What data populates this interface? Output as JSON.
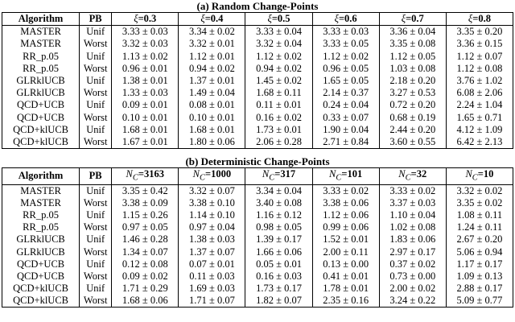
{
  "tables": [
    {
      "caption": "(a) Random Change-Points",
      "header": {
        "algorithm": "Algorithm",
        "pb": "PB",
        "columns": [
          {
            "symbol": "ξ",
            "value": "=0.3"
          },
          {
            "symbol": "ξ",
            "value": "=0.4"
          },
          {
            "symbol": "ξ",
            "value": "=0.5"
          },
          {
            "symbol": "ξ",
            "value": "=0.6"
          },
          {
            "symbol": "ξ",
            "value": "=0.7"
          },
          {
            "symbol": "ξ",
            "value": "=0.8"
          }
        ]
      },
      "rows": [
        [
          "MASTER",
          "Unif",
          "3.33 ± 0.03",
          "3.34 ± 0.02",
          "3.33 ± 0.04",
          "3.33 ± 0.03",
          "3.36 ± 0.04",
          "3.35 ± 0.20"
        ],
        [
          "MASTER",
          "Worst",
          "3.32 ± 0.03",
          "3.32 ± 0.01",
          "3.32 ± 0.04",
          "3.33 ± 0.05",
          "3.35 ± 0.08",
          "3.36 ± 0.15"
        ],
        [
          "RR_p.05",
          "Unif",
          "1.13 ± 0.02",
          "1.12 ± 0.01",
          "1.12 ± 0.02",
          "1.12 ± 0.02",
          "1.12 ± 0.05",
          "1.12 ± 0.07"
        ],
        [
          "RR_p.05",
          "Worst",
          "0.96 ± 0.01",
          "0.94 ± 0.02",
          "0.94 ± 0.02",
          "0.96 ± 0.05",
          "1.03 ± 0.08",
          "1.12 ± 0.08"
        ],
        [
          "GLRklUCB",
          "Unif",
          "1.38 ± 0.01",
          "1.37 ± 0.01",
          "1.45 ± 0.02",
          "1.65 ± 0.05",
          "2.18 ± 0.20",
          "3.76 ± 1.02"
        ],
        [
          "GLRklUCB",
          "Worst",
          "1.33 ± 0.03",
          "1.49 ± 0.04",
          "1.68 ± 0.11",
          "2.14 ± 0.37",
          "3.27 ± 0.53",
          "6.08 ± 2.06"
        ],
        [
          "QCD+UCB",
          "Unif",
          "0.09 ± 0.01",
          "0.08 ± 0.01",
          "0.11 ± 0.01",
          "0.24 ± 0.04",
          "0.72 ± 0.20",
          "2.24 ± 1.04"
        ],
        [
          "QCD+UCB",
          "Worst",
          "0.10 ± 0.01",
          "0.10 ± 0.01",
          "0.16 ± 0.02",
          "0.33 ± 0.07",
          "0.68 ± 0.19",
          "1.65 ± 0.71"
        ],
        [
          "QCD+klUCB",
          "Unif",
          "1.68 ± 0.01",
          "1.68 ± 0.01",
          "1.73 ± 0.01",
          "1.90 ± 0.04",
          "2.44 ± 0.20",
          "4.12 ± 1.09"
        ],
        [
          "QCD+klUCB",
          "Worst",
          "1.67 ± 0.01",
          "1.80 ± 0.06",
          "2.06 ± 0.28",
          "2.71 ± 0.84",
          "3.60 ± 0.55",
          "6.42 ± 2.13"
        ]
      ]
    },
    {
      "caption": "(b) Deterministic Change-Points",
      "header": {
        "algorithm": "Algorithm",
        "pb": "PB",
        "columns": [
          {
            "symbol": "N",
            "sub": "C",
            "value": "=3163"
          },
          {
            "symbol": "N",
            "sub": "C",
            "value": "=1000"
          },
          {
            "symbol": "N",
            "sub": "C",
            "value": "=317"
          },
          {
            "symbol": "N",
            "sub": "C",
            "value": "=101"
          },
          {
            "symbol": "N",
            "sub": "C",
            "value": "=32"
          },
          {
            "symbol": "N",
            "sub": "C",
            "value": "=10"
          }
        ]
      },
      "rows": [
        [
          "MASTER",
          "Unif",
          "3.35 ± 0.42",
          "3.32 ± 0.07",
          "3.34 ± 0.04",
          "3.33 ± 0.02",
          "3.33 ± 0.02",
          "3.32 ± 0.02"
        ],
        [
          "MASTER",
          "Worst",
          "3.38 ± 0.09",
          "3.38 ± 0.10",
          "3.40 ± 0.08",
          "3.38 ± 0.06",
          "3.37 ± 0.03",
          "3.35 ± 0.02"
        ],
        [
          "RR_p.05",
          "Unif",
          "1.15 ± 0.26",
          "1.14 ± 0.10",
          "1.16 ± 0.12",
          "1.12 ± 0.06",
          "1.10 ± 0.04",
          "1.08 ± 0.11"
        ],
        [
          "RR_p.05",
          "Worst",
          "0.97 ± 0.05",
          "0.97 ± 0.04",
          "0.98 ± 0.05",
          "0.99 ± 0.06",
          "1.02 ± 0.08",
          "1.24 ± 0.11"
        ],
        [
          "GLRklUCB",
          "Unif",
          "1.46 ± 0.28",
          "1.38 ± 0.03",
          "1.39 ± 0.17",
          "1.52 ± 0.01",
          "1.83 ± 0.06",
          "2.67 ± 0.20"
        ],
        [
          "GLRklUCB",
          "Worst",
          "1.34 ± 0.07",
          "1.37 ± 0.07",
          "1.66 ± 0.06",
          "2.00 ± 0.11",
          "2.97 ± 0.17",
          "5.06 ± 0.94"
        ],
        [
          "QCD+UCB",
          "Unif",
          "0.12 ± 0.08",
          "0.07 ± 0.01",
          "0.05 ± 0.01",
          "0.13 ± 0.00",
          "0.37 ± 0.02",
          "1.17 ± 0.17"
        ],
        [
          "QCD+UCB",
          "Worst",
          "0.09 ± 0.02",
          "0.11 ± 0.03",
          "0.16 ± 0.03",
          "0.41 ± 0.01",
          "0.73 ± 0.00",
          "1.09 ± 0.13"
        ],
        [
          "QCD+klUCB",
          "Unif",
          "1.71 ± 0.29",
          "1.69 ± 0.03",
          "1.73 ± 0.17",
          "1.78 ± 0.01",
          "2.00 ± 0.02",
          "2.88 ± 0.17"
        ],
        [
          "QCD+klUCB",
          "Worst",
          "1.68 ± 0.06",
          "1.71 ± 0.07",
          "1.82 ± 0.07",
          "2.35 ± 0.16",
          "3.24 ± 0.22",
          "5.09 ± 0.77"
        ]
      ]
    }
  ]
}
